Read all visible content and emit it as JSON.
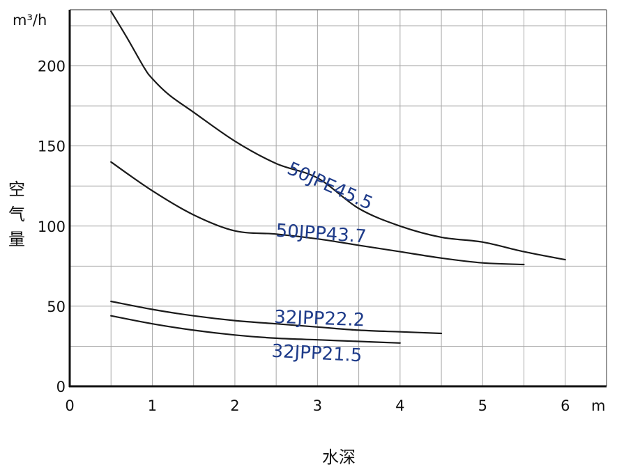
{
  "chart_data": {
    "type": "line",
    "y_unit": "m³/h",
    "x_unit": "m",
    "ylabel": "空气量",
    "xlabel": "水深",
    "xlim": [
      0,
      6.5
    ],
    "ylim": [
      0,
      235
    ],
    "x_ticks": [
      "0",
      "1",
      "2",
      "3",
      "4",
      "5",
      "6"
    ],
    "y_ticks": [
      "0",
      "50",
      "100",
      "150",
      "200"
    ],
    "grid": true,
    "line_color": "#1a1a1a",
    "label_color": "#1f3c8a",
    "series": [
      {
        "name": "50JPE45.5",
        "x": [
          0.5,
          0.7,
          0.9,
          1.0,
          1.2,
          1.5,
          2.0,
          2.5,
          3.0,
          3.5,
          4.0,
          4.5,
          5.0,
          5.5,
          6.0
        ],
        "y": [
          234,
          217,
          199,
          192,
          182,
          171,
          153,
          139,
          130,
          111,
          100,
          93,
          90,
          84,
          79
        ]
      },
      {
        "name": "50JPP43.7",
        "x": [
          0.5,
          1.0,
          1.5,
          2.0,
          2.5,
          3.0,
          3.5,
          4.0,
          4.5,
          5.0,
          5.5
        ],
        "y": [
          140,
          122,
          107,
          97,
          95,
          92,
          88,
          84,
          80,
          77,
          76
        ]
      },
      {
        "name": "32JPP22.2",
        "x": [
          0.5,
          1.0,
          1.5,
          2.0,
          2.5,
          3.0,
          3.5,
          4.0,
          4.5
        ],
        "y": [
          53,
          48,
          44,
          41,
          39,
          37,
          35,
          34,
          33
        ]
      },
      {
        "name": "32JPP21.5",
        "x": [
          0.5,
          1.0,
          1.5,
          2.0,
          2.5,
          3.0,
          3.5,
          4.0
        ],
        "y": [
          44,
          39,
          35,
          32,
          30,
          29,
          28,
          27
        ]
      }
    ]
  }
}
